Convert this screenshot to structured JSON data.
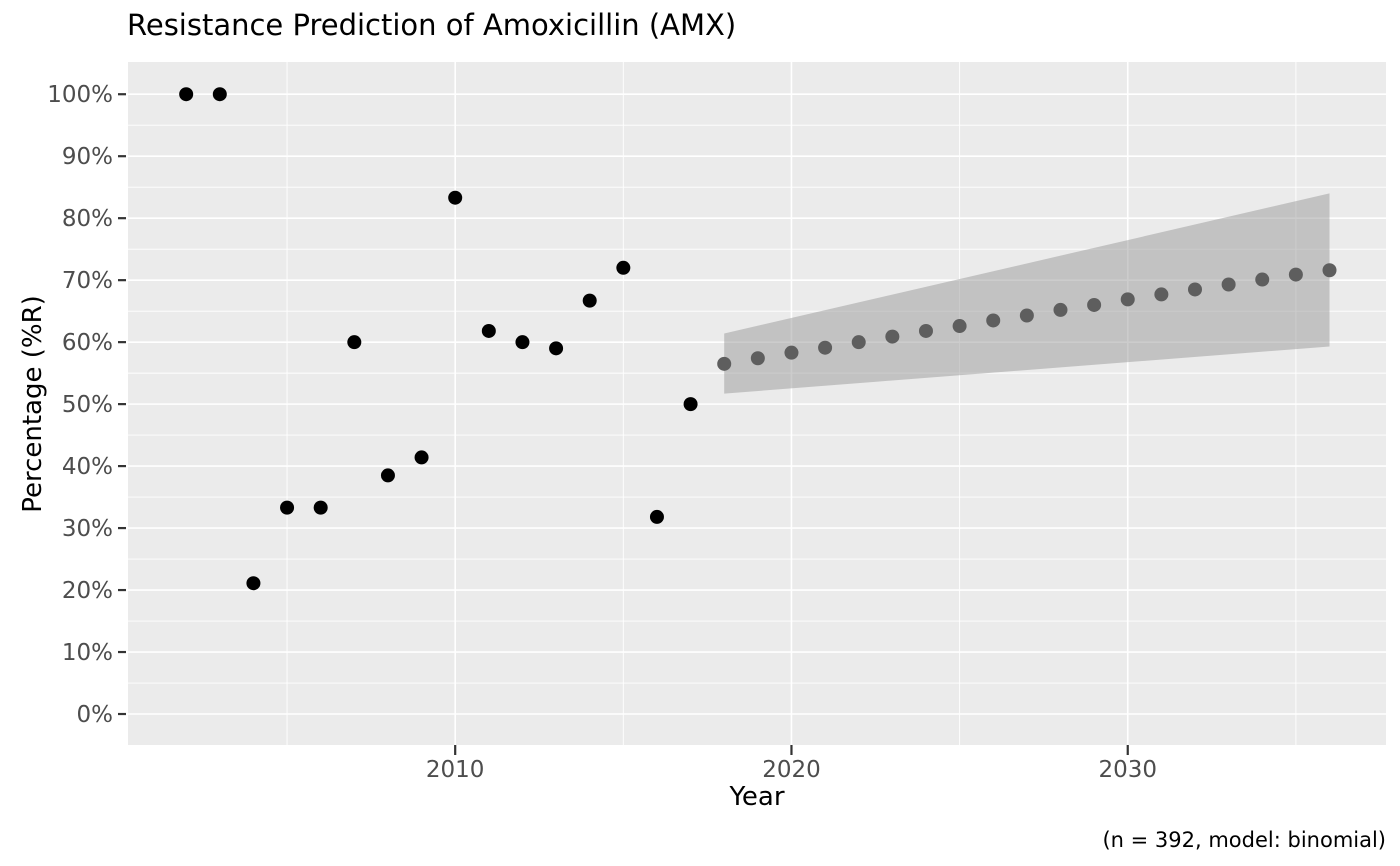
{
  "title": "Resistance Prediction of Amoxicillin (AMX)",
  "caption": "(n = 392, model: binomial)",
  "chart_data": {
    "type": "scatter",
    "title": "Resistance Prediction of Amoxicillin (AMX)",
    "xlabel": "Year",
    "ylabel": "Percentage (%R)",
    "caption": "(n = 392, model: binomial)",
    "xlim": [
      2000.27,
      2037.68
    ],
    "ylim": [
      -5,
      105.2
    ],
    "x_major_ticks": [
      2010,
      2020,
      2030
    ],
    "x_minor_ticks": [
      2005,
      2015,
      2025,
      2035
    ],
    "y_major_ticks": [
      0,
      10,
      20,
      30,
      40,
      50,
      60,
      70,
      80,
      90,
      100
    ],
    "y_minor_ticks": [
      5,
      15,
      25,
      35,
      45,
      55,
      65,
      75,
      85,
      95
    ],
    "y_tick_suffix": "%",
    "grid": true,
    "legend_position": "none",
    "colors": {
      "panel_background": "#EBEBEB",
      "grid": "#FFFFFF",
      "tick_marks": "#333333",
      "tick_labels": "#4D4D4D",
      "observed_points": "#000000",
      "predicted_points": "#5E5E5E",
      "ribbon_fill": "rgba(153,153,153,0.5)"
    },
    "series": [
      {
        "name": "observed",
        "type": "points",
        "color": "#000000",
        "x": [
          2002,
          2003,
          2004,
          2005,
          2006,
          2007,
          2008,
          2009,
          2010,
          2011,
          2012,
          2013,
          2014,
          2015,
          2016,
          2017
        ],
        "y": [
          100,
          100,
          21.1,
          33.3,
          33.3,
          60.0,
          38.5,
          41.4,
          83.3,
          61.8,
          60.0,
          59.0,
          66.7,
          72.0,
          31.8,
          50.0
        ]
      },
      {
        "name": "predicted",
        "type": "points",
        "color": "#5E5E5E",
        "x": [
          2018,
          2019,
          2020,
          2021,
          2022,
          2023,
          2024,
          2025,
          2026,
          2027,
          2028,
          2029,
          2030,
          2031,
          2032,
          2033,
          2034,
          2035,
          2036
        ],
        "y": [
          56.5,
          57.4,
          58.3,
          59.1,
          60.0,
          60.9,
          61.8,
          62.6,
          63.5,
          64.3,
          65.2,
          66.0,
          66.9,
          67.7,
          68.5,
          69.3,
          70.1,
          70.9,
          71.6
        ]
      }
    ],
    "ribbon": {
      "name": "confidence-interval",
      "x": [
        2018,
        2036
      ],
      "lower": [
        51.7,
        59.3
      ],
      "upper": [
        61.4,
        84.0
      ],
      "fill": "rgba(153,153,153,0.5)"
    }
  }
}
